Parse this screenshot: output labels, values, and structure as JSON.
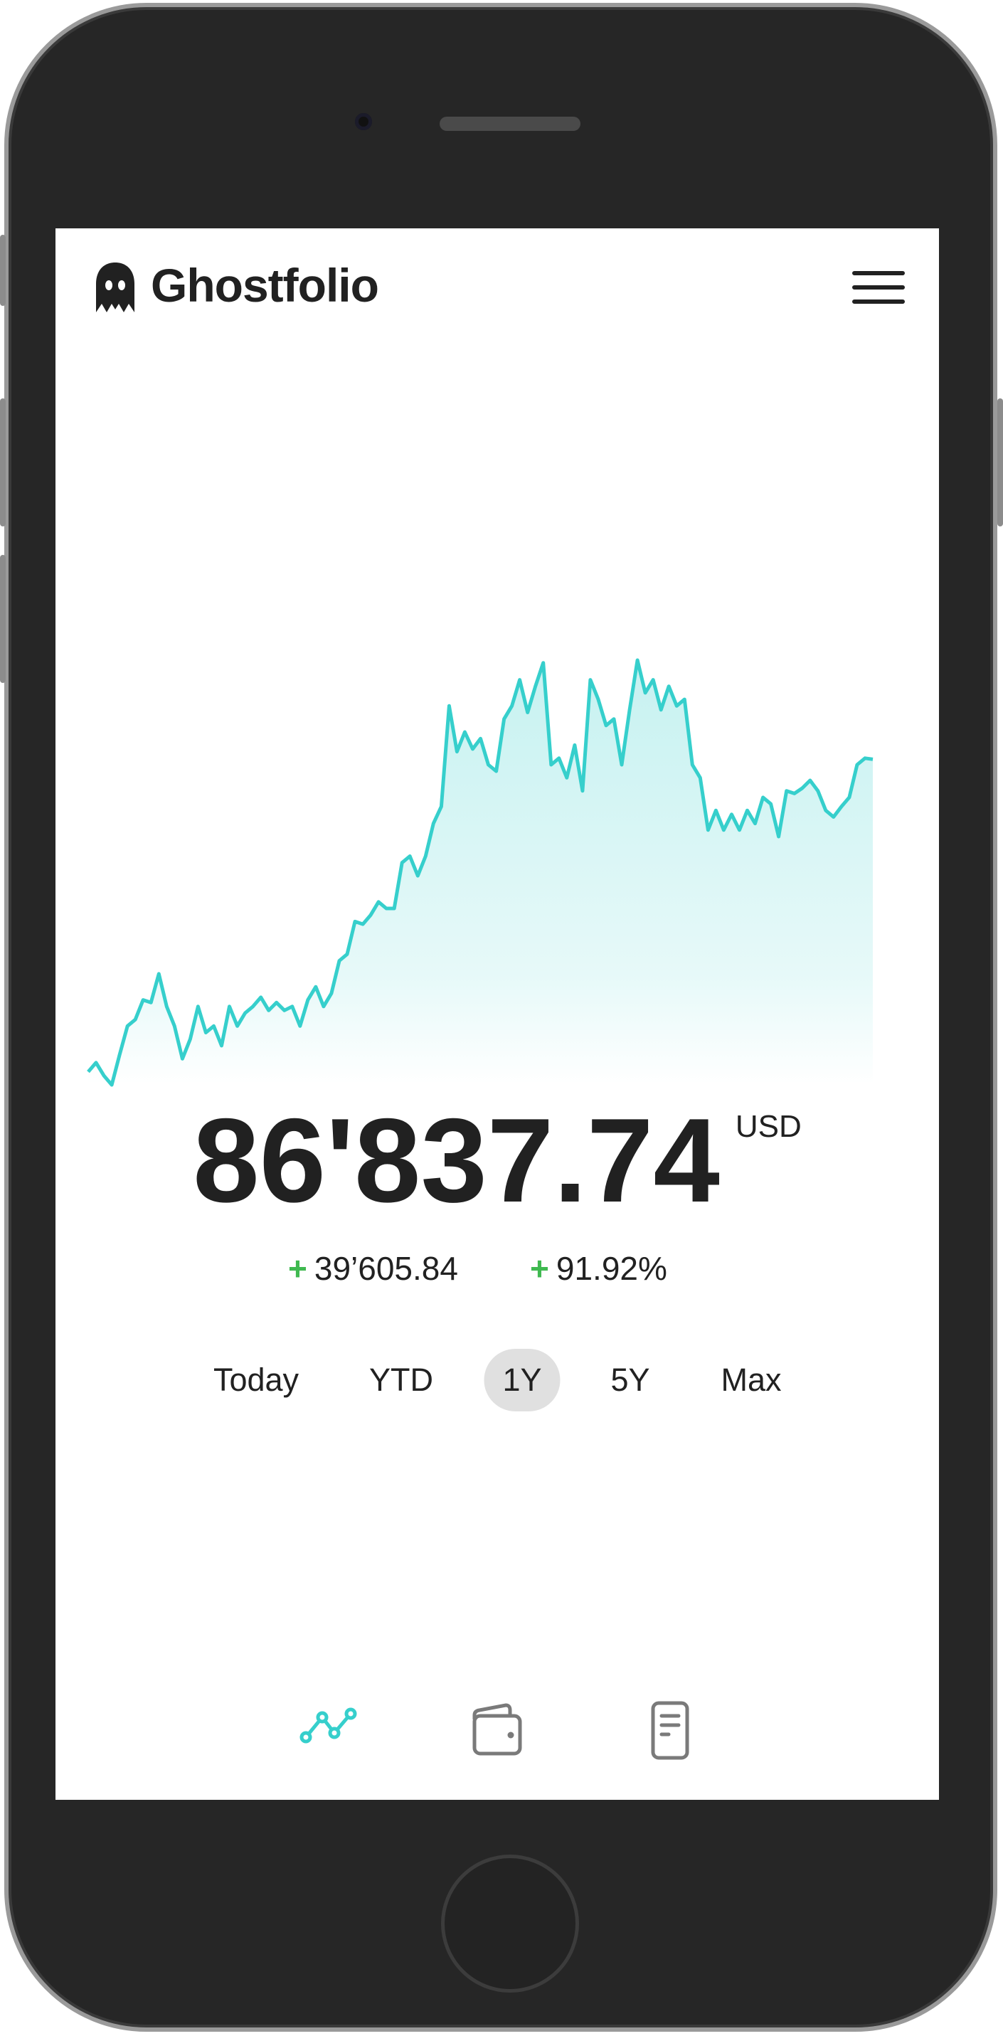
{
  "header": {
    "brand": "Ghostfolio",
    "logo_icon": "ghost-icon",
    "menu_icon": "hamburger-menu-icon"
  },
  "summary": {
    "total_value": "86'837.74",
    "currency": "USD",
    "absolute_change": "39’605.84",
    "relative_change": "91.92%",
    "change_sign": "+"
  },
  "periods": [
    {
      "label": "Today",
      "active": false
    },
    {
      "label": "YTD",
      "active": false
    },
    {
      "label": "1Y",
      "active": true
    },
    {
      "label": "5Y",
      "active": false
    },
    {
      "label": "Max",
      "active": false
    }
  ],
  "nav": [
    {
      "icon": "line-chart-icon",
      "active": true
    },
    {
      "icon": "wallet-icon",
      "active": false
    },
    {
      "icon": "document-icon",
      "active": false
    }
  ],
  "colors": {
    "accent": "#36cfcc",
    "positive": "#3fb950",
    "text": "#212121",
    "inactive_icon": "#7a7a7a"
  },
  "chart_data": {
    "type": "area",
    "grid": false,
    "xlabel": "",
    "ylabel": "",
    "values": [
      46898,
      48067,
      46397,
      45228,
      49069,
      52743,
      53578,
      56083,
      55749,
      59423,
      55248,
      52743,
      48568,
      51073,
      55248,
      51908,
      52743,
      50238,
      55248,
      52743,
      54413,
      55248,
      56417,
      54747,
      55749,
      54747,
      55248,
      52743,
      56083,
      57753,
      55248,
      56918,
      61093,
      61928,
      66103,
      65769,
      66938,
      68608,
      67773,
      67773,
      73618,
      74453,
      71948,
      74453,
      78628,
      80799,
      93658,
      87813,
      90318,
      88147,
      89483,
      86143,
      85308,
      91988,
      93658,
      96998,
      92823,
      96163,
      99169,
      86143,
      86978,
      84473,
      88648,
      82803,
      96998,
      94493,
      91153,
      91988,
      86143,
      93157,
      99503,
      95328,
      96998,
      93157,
      96163,
      93658,
      94493,
      86143,
      84473,
      77793,
      80298,
      77793,
      79797,
      77793,
      80298,
      78628,
      81968,
      81133,
      76958,
      82803,
      82469,
      83137,
      84139,
      82803,
      80298,
      79463,
      80799,
      81968,
      86143,
      86978,
      86838
    ],
    "ylim": [
      45228,
      99503
    ]
  }
}
